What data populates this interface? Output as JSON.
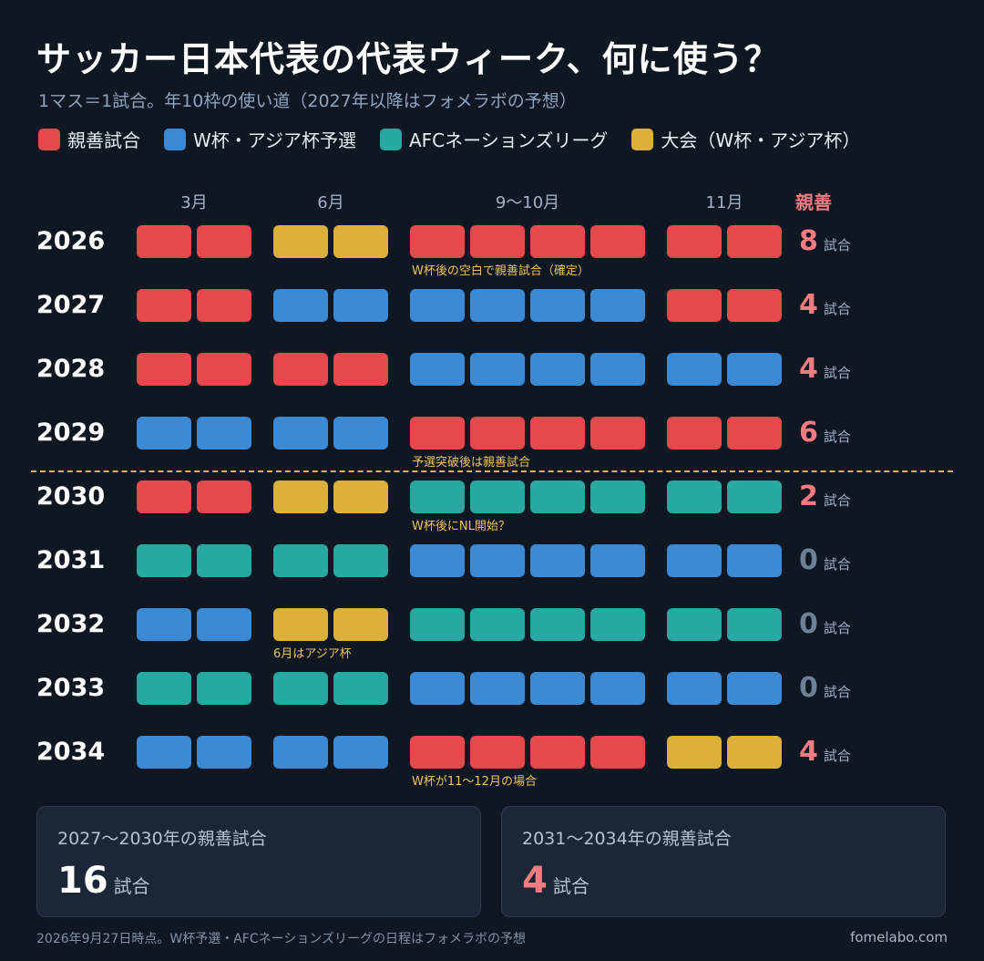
{
  "header": {
    "title": "サッカー日本代表の代表ウィーク、何に使う？",
    "subtitle": "1マス＝1試合。年10枠の使い道（2027年以降はフォメラボの予想）"
  },
  "colors": {
    "F": "#e5484d",
    "Q": "#3a8ad6",
    "N": "#27a9a2",
    "T": "#dcb13a",
    "count_pos": "#f47b82",
    "count_zero": "#6e8096"
  },
  "legend": [
    {
      "key": "F",
      "label": "親善試合"
    },
    {
      "key": "Q",
      "label": "W杯・アジア杯予選"
    },
    {
      "key": "N",
      "label": "AFCネーションズリーグ"
    },
    {
      "key": "T",
      "label": "大会（W杯・アジア杯）"
    }
  ],
  "chart_data": {
    "type": "table",
    "columns": [
      {
        "label": "3月",
        "slots": 2
      },
      {
        "label": "6月",
        "slots": 2
      },
      {
        "label": "9〜10月",
        "slots": 4
      },
      {
        "label": "11月",
        "slots": 2
      }
    ],
    "count_header": "親善",
    "count_unit": "試合",
    "categories_key": {
      "F": "親善試合",
      "Q": "W杯・アジア杯予選",
      "N": "AFCネーションズリーグ",
      "T": "大会（W杯・アジア杯）"
    },
    "rows": [
      {
        "year": "2026",
        "slots": [
          "F",
          "F",
          "T",
          "T",
          "F",
          "F",
          "F",
          "F",
          "F",
          "F"
        ],
        "friendlies": 8,
        "note": "W杯後の空白で親善試合（確定）"
      },
      {
        "year": "2027",
        "slots": [
          "F",
          "F",
          "Q",
          "Q",
          "Q",
          "Q",
          "Q",
          "Q",
          "F",
          "F"
        ],
        "friendlies": 4,
        "note": ""
      },
      {
        "year": "2028",
        "slots": [
          "F",
          "F",
          "F",
          "F",
          "Q",
          "Q",
          "Q",
          "Q",
          "Q",
          "Q"
        ],
        "friendlies": 4,
        "note": ""
      },
      {
        "year": "2029",
        "slots": [
          "Q",
          "Q",
          "Q",
          "Q",
          "F",
          "F",
          "F",
          "F",
          "F",
          "F"
        ],
        "friendlies": 6,
        "note": "予選突破後は親善試合"
      },
      {
        "year": "2030",
        "slots": [
          "F",
          "F",
          "T",
          "T",
          "N",
          "N",
          "N",
          "N",
          "N",
          "N"
        ],
        "friendlies": 2,
        "note": "W杯後にNL開始？"
      },
      {
        "year": "2031",
        "slots": [
          "N",
          "N",
          "N",
          "N",
          "Q",
          "Q",
          "Q",
          "Q",
          "Q",
          "Q"
        ],
        "friendlies": 0,
        "note": ""
      },
      {
        "year": "2032",
        "slots": [
          "Q",
          "Q",
          "T",
          "T",
          "N",
          "N",
          "N",
          "N",
          "N",
          "N"
        ],
        "friendlies": 0,
        "note": "6月はアジア杯"
      },
      {
        "year": "2033",
        "slots": [
          "N",
          "N",
          "N",
          "N",
          "Q",
          "Q",
          "Q",
          "Q",
          "Q",
          "Q"
        ],
        "friendlies": 0,
        "note": ""
      },
      {
        "year": "2034",
        "slots": [
          "Q",
          "Q",
          "Q",
          "Q",
          "F",
          "F",
          "F",
          "F",
          "T",
          "T"
        ],
        "friendlies": 4,
        "note": "W杯が11〜12月の場合"
      }
    ]
  },
  "summary": [
    {
      "title": "2027〜2030年の親善試合",
      "value": "16",
      "unit": "試合",
      "accent": false
    },
    {
      "title": "2031〜2034年の親善試合",
      "value": "4",
      "unit": "試合",
      "accent": true
    }
  ],
  "footer": {
    "note": "2026年9月27日時点。W杯予選・AFCネーションズリーグの日程はフォメラボの予想",
    "site": "fomelabo.com"
  }
}
